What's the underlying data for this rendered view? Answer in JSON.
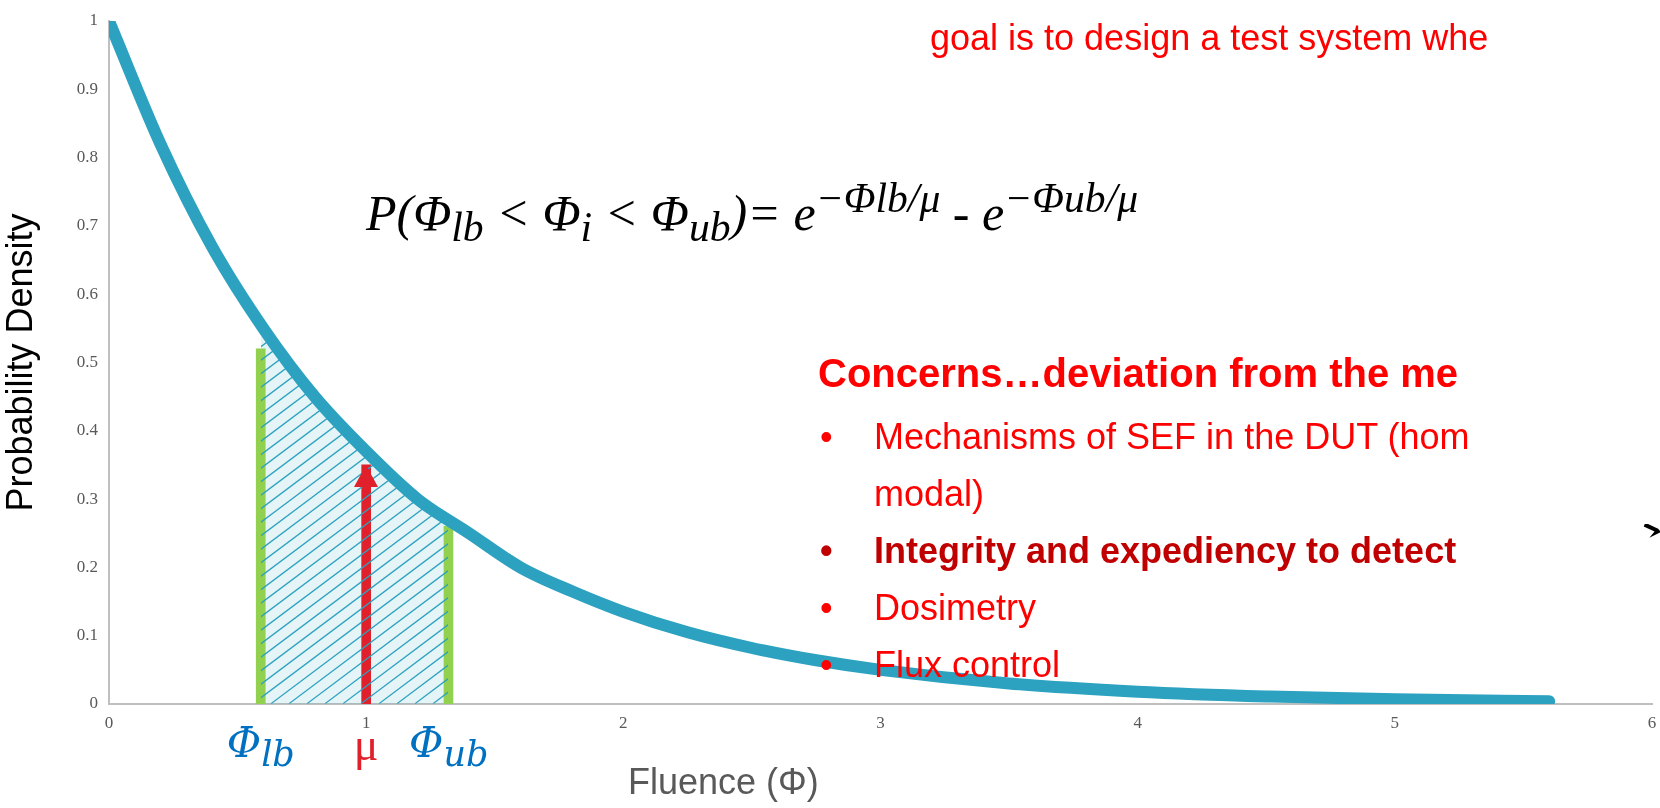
{
  "chart_data": {
    "type": "line",
    "xlabel": "Fluence (Φ)",
    "ylabel": "Probability Density",
    "xlim": [
      0,
      6
    ],
    "xticks": [
      0,
      1,
      2,
      3,
      4,
      5,
      6
    ],
    "ylim": [
      0,
      1
    ],
    "yticks": [
      0,
      0.1,
      0.2,
      0.3,
      0.4,
      0.5,
      0.6,
      0.7,
      0.8,
      0.9,
      1
    ],
    "grid": false,
    "legend": false,
    "marker": "none",
    "line_style": "solid",
    "series": [
      {
        "color": "#2ca2c0",
        "x": [
          0,
          0.2,
          0.4,
          0.6,
          0.8,
          1,
          1.2,
          1.4,
          1.6,
          1.8,
          2,
          2.25,
          2.5,
          2.75,
          3,
          3.5,
          4,
          4.5,
          5,
          5.6
        ],
        "values": [
          1,
          0.82,
          0.67,
          0.55,
          0.45,
          0.37,
          0.3,
          0.25,
          0.2,
          0.165,
          0.135,
          0.105,
          0.082,
          0.064,
          0.05,
          0.03,
          0.018,
          0.011,
          0.007,
          0.004
        ]
      },
      {
        "type": "area",
        "color": "#2ca2c0",
        "x": [
          0.59,
          0.8,
          1,
          1.2,
          1.32
        ],
        "values": [
          0.55,
          0.45,
          0.37,
          0.3,
          0.27
        ]
      },
      {
        "type": "bar",
        "name": "Φ$_{lb}$",
        "color": "#92d050",
        "x": [
          0.59
        ],
        "values": [
          0.52
        ]
      },
      {
        "type": "bar",
        "name": "Φ$_{ub}$",
        "color": "#92d050",
        "x": [
          1.32
        ],
        "values": [
          0.26
        ]
      },
      {
        "type": "bar",
        "name": "μ",
        "marker": "triangle",
        "color": "#e0202a",
        "x": [
          1
        ],
        "values": [
          0.35
        ]
      }
    ],
    "annotations": [
      "P(Φ$_{lb}$ < Φ$_{i}$ < Φ$_{ub}$)= e$^{−Φlb/μ}$ - e$^{−Φub/μ}$",
      "goal is to design a test system whe",
      "Concerns…deviation from the me",
      "•\tMechanisms of SEF in the DUT (hom\nmodal)",
      "•\tIntegrity and expediency to detect",
      "•\tDosimetry",
      "•\tFlux control"
    ]
  }
}
